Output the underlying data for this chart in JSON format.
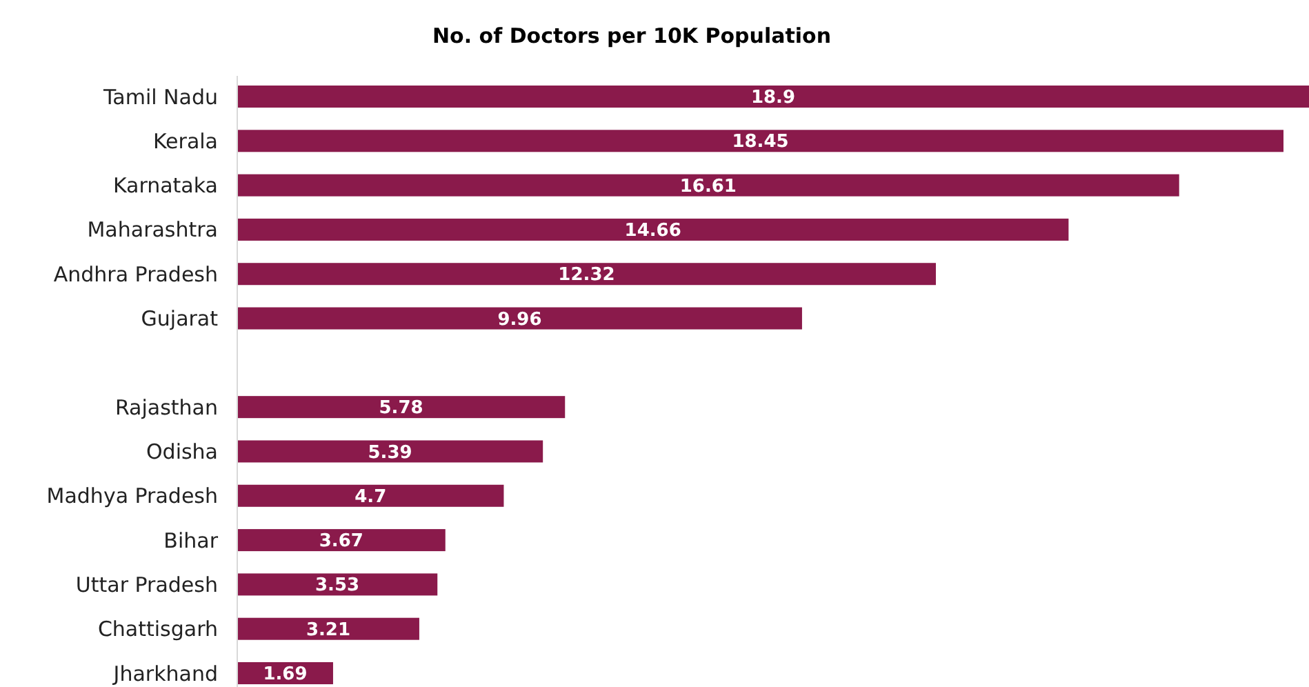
{
  "chart_data": {
    "type": "bar",
    "orientation": "horizontal",
    "title": "No. of Doctors per 10K Population",
    "categories": [
      "Tamil Nadu",
      "Kerala",
      "Karnataka",
      "Maharashtra",
      "Andhra Pradesh",
      "Gujarat",
      null,
      "Rajasthan",
      "Odisha",
      "Madhya Pradesh",
      "Bihar",
      "Uttar Pradesh",
      "Chattisgarh",
      "Jharkhand"
    ],
    "values": [
      18.9,
      18.45,
      16.61,
      14.66,
      12.32,
      9.96,
      null,
      5.78,
      5.39,
      4.7,
      3.67,
      3.53,
      3.21,
      1.69
    ],
    "color": "#8a1a4b",
    "data_labels": true,
    "tick_labels": "y"
  }
}
